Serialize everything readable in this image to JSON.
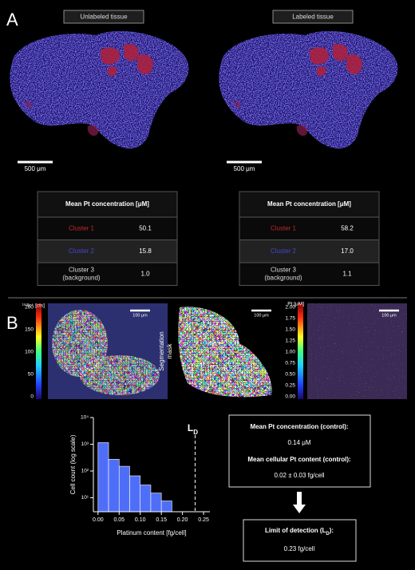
{
  "panel_a": {
    "label": "A",
    "images": [
      {
        "title": "Unlabeled tissue",
        "scale_bar": "500 μm"
      },
      {
        "title": "Labeled tissue",
        "scale_bar": "500 μm"
      }
    ],
    "tables": [
      {
        "header": "Mean Pt concentration [μM]",
        "rows": [
          {
            "label_lines": [
              "Cluster 1"
            ],
            "value": "50.1",
            "color": "#c0282d"
          },
          {
            "label_lines": [
              "Cluster 2"
            ],
            "value": "15.8",
            "color": "#4048d0"
          },
          {
            "label_lines": [
              "Cluster 3",
              "(background)"
            ],
            "value": "1.0",
            "color": "#dddddd"
          }
        ]
      },
      {
        "header": "Mean Pt concentration [μM]",
        "rows": [
          {
            "label_lines": [
              "Cluster 1"
            ],
            "value": "58.2",
            "color": "#c0282d"
          },
          {
            "label_lines": [
              "Cluster 2"
            ],
            "value": "17.0",
            "color": "#4048d0"
          },
          {
            "label_lines": [
              "Cluster 3",
              "(background)"
            ],
            "value": "1.1",
            "color": "#dddddd"
          }
        ]
      }
    ]
  },
  "panel_b": {
    "label": "B",
    "ir_map": {
      "colorbar_title": "¹⁹³Ir⁺ [cts]",
      "colorbar_ticks": [
        "0",
        "50",
        "100",
        "150",
        "200"
      ],
      "scale_bar": "100 μm"
    },
    "segmentation": {
      "label_lines": [
        "Segmentation",
        "mask"
      ],
      "scale_bar": "100 μm"
    },
    "pt_map": {
      "colorbar_title": "Pt [μM]",
      "colorbar_ticks": [
        "0.00",
        "0.25",
        "0.50",
        "0.75",
        "1.00",
        "1.25",
        "1.50",
        "1.75",
        "2.00"
      ],
      "scale_bar": "100 μm"
    },
    "control_box": {
      "items": [
        {
          "heading": "Mean Pt concentration (control):",
          "value": "0.14 μM"
        },
        {
          "heading": "Mean cellular Pt content (control):",
          "value": "0.02 ± 0.03 fg/cell"
        }
      ]
    },
    "lod_box": {
      "heading_parts": [
        "Limit of detection (L",
        "D",
        "):"
      ],
      "value": "0.23 fg/cell"
    }
  },
  "chart_data": {
    "type": "histogram",
    "bins": [
      0,
      0.025,
      0.05,
      0.075,
      0.1,
      0.125,
      0.15,
      0.175
    ],
    "values": [
      1150,
      275,
      150,
      66,
      30,
      15,
      7.6
    ],
    "color": "#4f6ef7",
    "xlim": [
      -0.011,
      0.265
    ],
    "ylim": [
      3,
      10000
    ],
    "log_y": true,
    "xticks": [
      {
        "value": 0,
        "label": "0.00"
      },
      {
        "value": 0.05,
        "label": "0.05"
      },
      {
        "value": 0.1,
        "label": "0.10"
      },
      {
        "value": 0.15,
        "label": "0.15"
      },
      {
        "value": 0.2,
        "label": "0.20"
      },
      {
        "value": 0.25,
        "label": "0.25"
      }
    ],
    "yticks": [
      {
        "value": 10,
        "label": "10¹"
      },
      {
        "value": 100,
        "label": "10²"
      },
      {
        "value": 1000,
        "label": "10³"
      },
      {
        "value": 10000,
        "label": "10⁴"
      }
    ],
    "xlabel": "Platinum content [fg/cell]",
    "ylabel": "Cell count (log scale)",
    "limit_line": {
      "x": 0.23,
      "label": "L",
      "label_sub": "D"
    }
  }
}
